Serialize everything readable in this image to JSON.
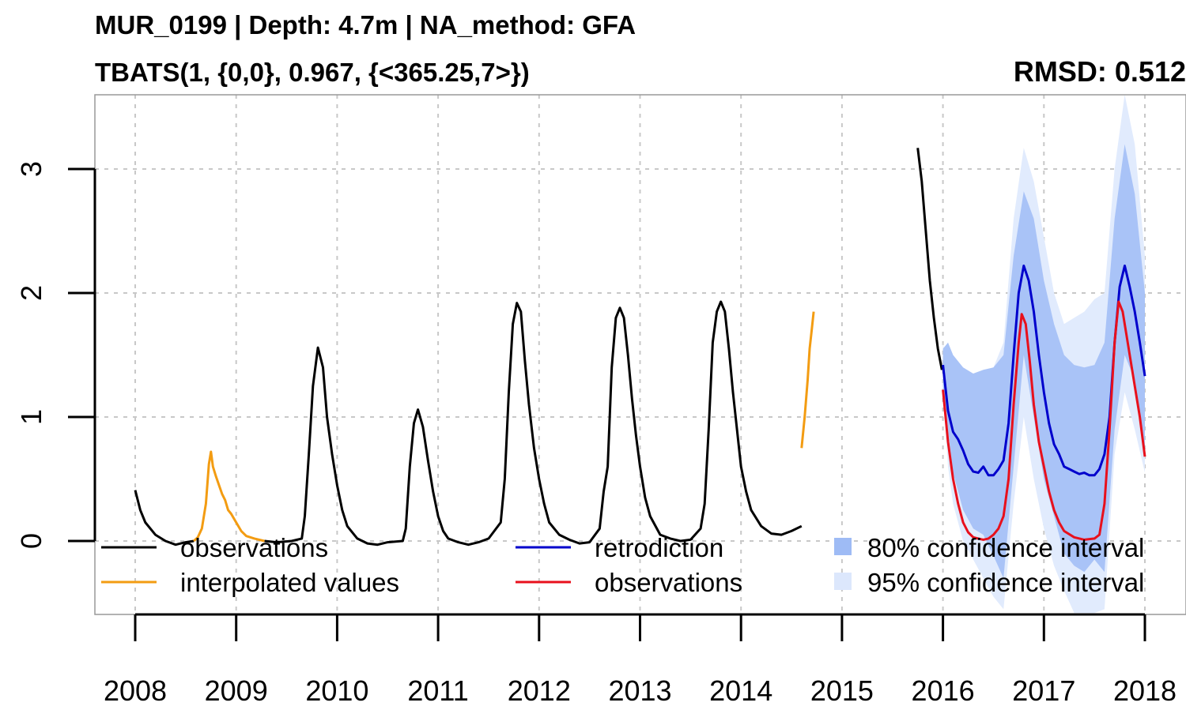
{
  "title": "MUR_0199 | Depth: 4.7m | NA_method: GFA",
  "subtitle": "TBATS(1, {0,0}, 0.967, {<365.25,7>})",
  "rmsd_label": "RMSD: 0.512",
  "chart_data": {
    "type": "line",
    "title": "MUR_0199 | Depth: 4.7m | NA_method: GFA",
    "subtitle": "TBATS(1, {0,0}, 0.967, {<365.25,7>})",
    "annotation": "RMSD: 0.512",
    "xlabel": "",
    "ylabel": "",
    "xlim": [
      2007.6,
      2018.4
    ],
    "ylim": [
      -0.58,
      3.6
    ],
    "x_ticks": [
      "2008",
      "2009",
      "2010",
      "2011",
      "2012",
      "2013",
      "2014",
      "2015",
      "2016",
      "2017",
      "2018"
    ],
    "y_ticks": [
      "0",
      "1",
      "2",
      "3"
    ],
    "grid": true,
    "legend": [
      {
        "label": "observations",
        "color": "#000000",
        "kind": "line"
      },
      {
        "label": "interpolated values",
        "color": "#F39C12",
        "kind": "line"
      },
      {
        "label": "retrodiction",
        "color": "#0000CC",
        "kind": "line"
      },
      {
        "label": "observations",
        "color": "#E8101C",
        "kind": "line"
      },
      {
        "label": "80% confidence interval",
        "color": "#9EBBF5",
        "kind": "fill"
      },
      {
        "label": "95% confidence interval",
        "color": "#DCE7FC",
        "kind": "fill"
      }
    ],
    "colors": {
      "observations": "#000000",
      "interpolated": "#F39C12",
      "retrodiction": "#0000CC",
      "validation_observations": "#E8101C",
      "ci80": "#A9C3F7",
      "ci95": "#E1EBFD"
    },
    "series": [
      {
        "role": "observations",
        "segments": [
          [
            [
              2008.0,
              0.41
            ],
            [
              2008.05,
              0.25
            ],
            [
              2008.1,
              0.15
            ],
            [
              2008.2,
              0.05
            ],
            [
              2008.3,
              0.0
            ],
            [
              2008.4,
              -0.03
            ],
            [
              2008.5,
              -0.01
            ],
            [
              2008.58,
              0.0
            ]
          ],
          [
            [
              2009.28,
              0.0
            ],
            [
              2009.4,
              -0.01
            ],
            [
              2009.55,
              0.0
            ],
            [
              2009.65,
              0.02
            ],
            [
              2009.68,
              0.2
            ],
            [
              2009.72,
              0.7
            ],
            [
              2009.76,
              1.25
            ],
            [
              2009.81,
              1.56
            ],
            [
              2009.86,
              1.4
            ],
            [
              2009.9,
              1.0
            ],
            [
              2009.95,
              0.7
            ],
            [
              2010.0,
              0.45
            ],
            [
              2010.05,
              0.25
            ],
            [
              2010.1,
              0.12
            ],
            [
              2010.2,
              0.02
            ],
            [
              2010.3,
              -0.02
            ],
            [
              2010.4,
              -0.03
            ],
            [
              2010.5,
              -0.01
            ],
            [
              2010.65,
              0.0
            ],
            [
              2010.68,
              0.1
            ],
            [
              2010.72,
              0.6
            ],
            [
              2010.76,
              0.95
            ],
            [
              2010.8,
              1.06
            ],
            [
              2010.85,
              0.92
            ],
            [
              2010.9,
              0.65
            ],
            [
              2010.95,
              0.4
            ],
            [
              2011.0,
              0.2
            ],
            [
              2011.05,
              0.08
            ],
            [
              2011.1,
              0.02
            ],
            [
              2011.2,
              -0.01
            ],
            [
              2011.3,
              -0.03
            ],
            [
              2011.4,
              -0.01
            ],
            [
              2011.5,
              0.02
            ],
            [
              2011.62,
              0.15
            ],
            [
              2011.66,
              0.5
            ],
            [
              2011.7,
              1.2
            ],
            [
              2011.74,
              1.75
            ],
            [
              2011.78,
              1.92
            ],
            [
              2011.82,
              1.85
            ],
            [
              2011.86,
              1.45
            ],
            [
              2011.9,
              1.1
            ],
            [
              2011.95,
              0.75
            ],
            [
              2012.0,
              0.5
            ],
            [
              2012.05,
              0.3
            ],
            [
              2012.1,
              0.15
            ],
            [
              2012.2,
              0.05
            ],
            [
              2012.3,
              0.01
            ],
            [
              2012.4,
              -0.02
            ],
            [
              2012.5,
              -0.01
            ],
            [
              2012.6,
              0.1
            ],
            [
              2012.64,
              0.4
            ],
            [
              2012.68,
              0.6
            ],
            [
              2012.72,
              1.4
            ],
            [
              2012.76,
              1.8
            ],
            [
              2012.8,
              1.88
            ],
            [
              2012.84,
              1.8
            ],
            [
              2012.88,
              1.5
            ],
            [
              2012.92,
              1.15
            ],
            [
              2012.96,
              0.85
            ],
            [
              2013.0,
              0.6
            ],
            [
              2013.05,
              0.35
            ],
            [
              2013.1,
              0.2
            ],
            [
              2013.2,
              0.05
            ],
            [
              2013.3,
              0.02
            ],
            [
              2013.4,
              0.0
            ],
            [
              2013.5,
              0.01
            ],
            [
              2013.6,
              0.1
            ],
            [
              2013.64,
              0.3
            ],
            [
              2013.68,
              0.9
            ],
            [
              2013.72,
              1.6
            ],
            [
              2013.76,
              1.85
            ],
            [
              2013.8,
              1.93
            ],
            [
              2013.84,
              1.85
            ],
            [
              2013.88,
              1.55
            ],
            [
              2013.92,
              1.2
            ],
            [
              2013.96,
              0.9
            ],
            [
              2014.0,
              0.6
            ],
            [
              2014.05,
              0.4
            ],
            [
              2014.1,
              0.25
            ],
            [
              2014.2,
              0.12
            ],
            [
              2014.3,
              0.06
            ],
            [
              2014.4,
              0.05
            ],
            [
              2014.5,
              0.08
            ],
            [
              2014.6,
              0.12
            ]
          ],
          [
            [
              2015.75,
              3.17
            ],
            [
              2015.79,
              2.9
            ],
            [
              2015.83,
              2.5
            ],
            [
              2015.87,
              2.1
            ],
            [
              2015.91,
              1.8
            ],
            [
              2015.95,
              1.55
            ],
            [
              2015.99,
              1.38
            ]
          ]
        ]
      },
      {
        "role": "interpolated",
        "segments": [
          [
            [
              2008.58,
              0.0
            ],
            [
              2008.62,
              0.03
            ],
            [
              2008.66,
              0.1
            ],
            [
              2008.7,
              0.3
            ],
            [
              2008.73,
              0.62
            ],
            [
              2008.75,
              0.72
            ],
            [
              2008.77,
              0.6
            ],
            [
              2008.8,
              0.52
            ],
            [
              2008.83,
              0.45
            ],
            [
              2008.86,
              0.38
            ],
            [
              2008.89,
              0.33
            ],
            [
              2008.92,
              0.25
            ],
            [
              2008.95,
              0.22
            ],
            [
              2009.0,
              0.15
            ],
            [
              2009.05,
              0.08
            ],
            [
              2009.1,
              0.04
            ],
            [
              2009.18,
              0.02
            ],
            [
              2009.28,
              0.0
            ]
          ],
          [
            [
              2014.6,
              0.75
            ],
            [
              2014.63,
              1.0
            ],
            [
              2014.66,
              1.3
            ],
            [
              2014.68,
              1.55
            ],
            [
              2014.7,
              1.7
            ],
            [
              2014.72,
              1.85
            ]
          ]
        ]
      },
      {
        "role": "retrodiction",
        "segments": [
          [
            [
              2016.0,
              1.42
            ],
            [
              2016.05,
              1.05
            ],
            [
              2016.1,
              0.88
            ],
            [
              2016.15,
              0.82
            ],
            [
              2016.2,
              0.73
            ],
            [
              2016.25,
              0.62
            ],
            [
              2016.3,
              0.56
            ],
            [
              2016.35,
              0.55
            ],
            [
              2016.4,
              0.6
            ],
            [
              2016.45,
              0.53
            ],
            [
              2016.5,
              0.53
            ],
            [
              2016.55,
              0.58
            ],
            [
              2016.6,
              0.65
            ],
            [
              2016.65,
              0.95
            ],
            [
              2016.7,
              1.5
            ],
            [
              2016.75,
              2.0
            ],
            [
              2016.8,
              2.22
            ],
            [
              2016.85,
              2.1
            ],
            [
              2016.9,
              1.85
            ],
            [
              2016.95,
              1.5
            ],
            [
              2017.0,
              1.2
            ],
            [
              2017.05,
              0.95
            ],
            [
              2017.1,
              0.78
            ],
            [
              2017.15,
              0.7
            ],
            [
              2017.2,
              0.6
            ],
            [
              2017.25,
              0.58
            ],
            [
              2017.3,
              0.56
            ],
            [
              2017.35,
              0.54
            ],
            [
              2017.4,
              0.55
            ],
            [
              2017.45,
              0.53
            ],
            [
              2017.5,
              0.53
            ],
            [
              2017.55,
              0.58
            ],
            [
              2017.6,
              0.7
            ],
            [
              2017.65,
              1.0
            ],
            [
              2017.7,
              1.6
            ],
            [
              2017.75,
              2.05
            ],
            [
              2017.8,
              2.22
            ],
            [
              2017.85,
              2.05
            ],
            [
              2017.9,
              1.85
            ],
            [
              2017.95,
              1.6
            ],
            [
              2018.0,
              1.33
            ]
          ]
        ]
      },
      {
        "role": "validation_observations",
        "segments": [
          [
            [
              2016.0,
              1.22
            ],
            [
              2016.05,
              0.8
            ],
            [
              2016.1,
              0.5
            ],
            [
              2016.15,
              0.3
            ],
            [
              2016.2,
              0.15
            ],
            [
              2016.25,
              0.07
            ],
            [
              2016.3,
              0.03
            ],
            [
              2016.35,
              0.02
            ],
            [
              2016.4,
              0.01
            ],
            [
              2016.45,
              0.02
            ],
            [
              2016.5,
              0.05
            ],
            [
              2016.55,
              0.1
            ],
            [
              2016.6,
              0.2
            ],
            [
              2016.65,
              0.5
            ],
            [
              2016.7,
              1.1
            ],
            [
              2016.75,
              1.6
            ],
            [
              2016.78,
              1.83
            ],
            [
              2016.82,
              1.75
            ],
            [
              2016.86,
              1.45
            ],
            [
              2016.9,
              1.1
            ],
            [
              2016.95,
              0.8
            ],
            [
              2017.0,
              0.6
            ],
            [
              2017.05,
              0.4
            ],
            [
              2017.1,
              0.25
            ],
            [
              2017.15,
              0.15
            ],
            [
              2017.2,
              0.08
            ],
            [
              2017.3,
              0.03
            ],
            [
              2017.4,
              0.01
            ],
            [
              2017.5,
              0.02
            ],
            [
              2017.55,
              0.05
            ],
            [
              2017.6,
              0.3
            ],
            [
              2017.65,
              0.9
            ],
            [
              2017.7,
              1.6
            ],
            [
              2017.74,
              1.93
            ],
            [
              2017.78,
              1.85
            ],
            [
              2017.82,
              1.65
            ],
            [
              2017.86,
              1.45
            ],
            [
              2017.9,
              1.25
            ],
            [
              2017.95,
              1.0
            ],
            [
              2018.0,
              0.68
            ]
          ]
        ]
      }
    ],
    "ci80": {
      "x": [
        2016.0,
        2016.05,
        2016.1,
        2016.2,
        2016.3,
        2016.4,
        2016.5,
        2016.6,
        2016.7,
        2016.8,
        2016.9,
        2017.0,
        2017.1,
        2017.2,
        2017.3,
        2017.4,
        2017.5,
        2017.6,
        2017.7,
        2017.8,
        2017.9,
        2018.0
      ],
      "upper": [
        1.55,
        1.6,
        1.5,
        1.4,
        1.35,
        1.38,
        1.4,
        1.5,
        2.3,
        2.82,
        2.6,
        2.1,
        1.75,
        1.5,
        1.42,
        1.4,
        1.42,
        1.6,
        2.6,
        3.2,
        2.8,
        2.0
      ],
      "lower": [
        1.25,
        0.9,
        0.55,
        0.25,
        0.1,
        0.05,
        -0.12,
        -0.3,
        0.6,
        1.5,
        1.0,
        0.5,
        0.2,
        -0.1,
        -0.2,
        -0.25,
        -0.15,
        -0.25,
        0.9,
        1.5,
        1.3,
        0.75
      ]
    },
    "ci95": {
      "x": [
        2016.0,
        2016.05,
        2016.1,
        2016.2,
        2016.3,
        2016.4,
        2016.5,
        2016.6,
        2016.7,
        2016.8,
        2016.9,
        2017.0,
        2017.1,
        2017.2,
        2017.3,
        2017.4,
        2017.5,
        2017.6,
        2017.7,
        2017.8,
        2017.9,
        2018.0
      ],
      "upper": [
        1.6,
        1.3,
        1.2,
        1.25,
        1.2,
        1.35,
        1.4,
        1.6,
        2.6,
        3.17,
        2.9,
        2.45,
        2.0,
        1.75,
        1.8,
        1.85,
        1.95,
        2.0,
        3.0,
        3.6,
        3.2,
        2.3
      ],
      "lower": [
        1.2,
        0.6,
        0.3,
        0.0,
        -0.15,
        -0.3,
        -0.45,
        -0.55,
        0.3,
        1.0,
        0.5,
        0.1,
        -0.2,
        -0.4,
        -0.58,
        -0.58,
        -0.58,
        -0.55,
        0.7,
        1.2,
        0.9,
        0.55
      ]
    }
  }
}
